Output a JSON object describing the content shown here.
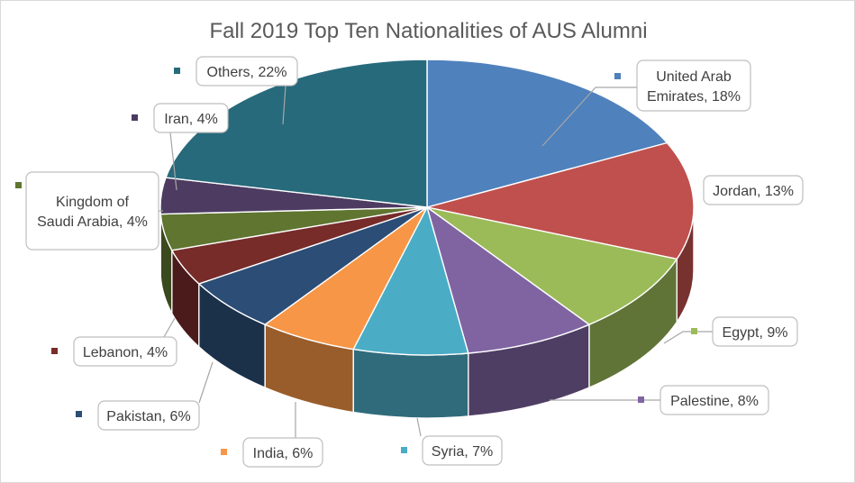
{
  "chart_data": {
    "type": "pie",
    "title": "Fall 2019 Top Ten Nationalities of AUS Alumni",
    "slices": [
      {
        "label": "United Arab Emirates",
        "value": 18,
        "text": [
          "United Arab",
          "Emirates, 18%"
        ],
        "color": "#4f81bd"
      },
      {
        "label": "Jordan",
        "value": 13,
        "text": [
          "Jordan, 13%"
        ],
        "color": "#c0504d"
      },
      {
        "label": "Egypt",
        "value": 9,
        "text": [
          "Egypt, 9%"
        ],
        "color": "#9bbb59"
      },
      {
        "label": "Palestine",
        "value": 8,
        "text": [
          "Palestine, 8%"
        ],
        "color": "#8064a2"
      },
      {
        "label": "Syria",
        "value": 7,
        "text": [
          "Syria, 7%"
        ],
        "color": "#4bacc6"
      },
      {
        "label": "India",
        "value": 6,
        "text": [
          "India, 6%"
        ],
        "color": "#f79646"
      },
      {
        "label": "Pakistan",
        "value": 6,
        "text": [
          "Pakistan, 6%"
        ],
        "color": "#2c4d75"
      },
      {
        "label": "Lebanon",
        "value": 4,
        "text": [
          "Lebanon, 4%"
        ],
        "color": "#772c2a"
      },
      {
        "label": "Kingdom of Saudi Arabia",
        "value": 4,
        "text": [
          "Kingdom of",
          "Saudi Arabia, 4%"
        ],
        "color": "#5f7530"
      },
      {
        "label": "Iran",
        "value": 4,
        "text": [
          "Iran, 4%"
        ],
        "color": "#4d3b62"
      },
      {
        "label": "Others",
        "value": 22,
        "text": [
          "Others, 22%"
        ],
        "color": "#276a7c"
      }
    ]
  }
}
